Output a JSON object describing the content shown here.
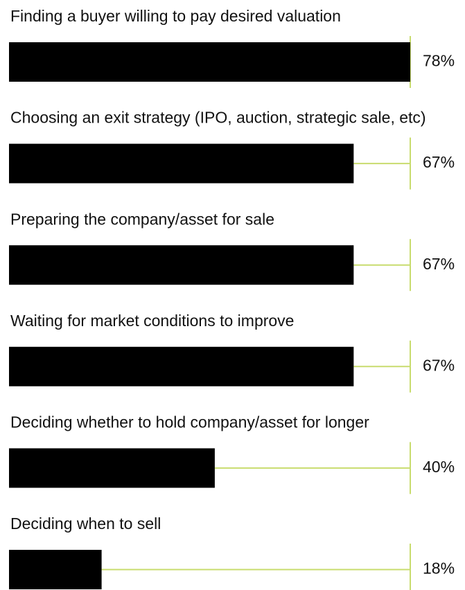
{
  "chart_data": {
    "type": "bar",
    "orientation": "horizontal",
    "categories": [
      "Finding a buyer willing to pay desired valuation",
      "Choosing an exit strategy (IPO, auction, strategic sale, etc)",
      "Preparing the company/asset for sale",
      "Waiting for market conditions to improve",
      "Deciding whether to hold company/asset for longer",
      "Deciding when to sell"
    ],
    "values": [
      78,
      67,
      67,
      67,
      40,
      18
    ],
    "value_labels": [
      "78%",
      "67%",
      "67%",
      "67%",
      "40%",
      "18%"
    ],
    "color": "#000000",
    "guide_color": "#c8dc6e",
    "xlim": [
      0,
      78
    ]
  }
}
